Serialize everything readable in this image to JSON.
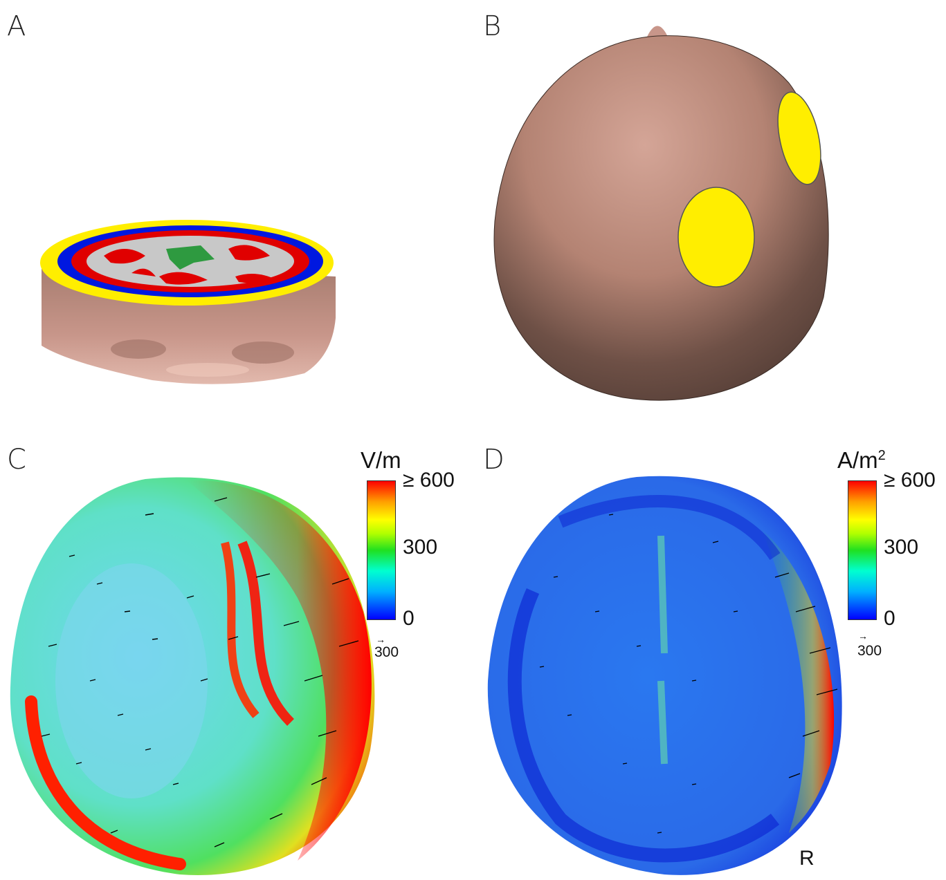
{
  "panels": {
    "a": {
      "letter": "A"
    },
    "b": {
      "letter": "B"
    },
    "c": {
      "letter": "C",
      "colorbar": {
        "unit": "V/m",
        "ticks": [
          "≥ 600",
          "300",
          "0"
        ]
      },
      "arrow_scale": "300"
    },
    "d": {
      "letter": "D",
      "colorbar": {
        "unit": "A/m",
        "unit_superscript": "2",
        "ticks": [
          "≥ 600",
          "300",
          "0"
        ]
      },
      "arrow_scale": "300",
      "orientation": "R"
    }
  },
  "colors": {
    "skin": "#c8968a",
    "scalp_shadow": "#4f3a33",
    "electrode": "#ffee00",
    "skull": "#ffee00",
    "csf": "#0018e0",
    "gray_matter": "#e00000",
    "white_matter": "#c8c8c8",
    "ventricles": "#2e9a40"
  }
}
